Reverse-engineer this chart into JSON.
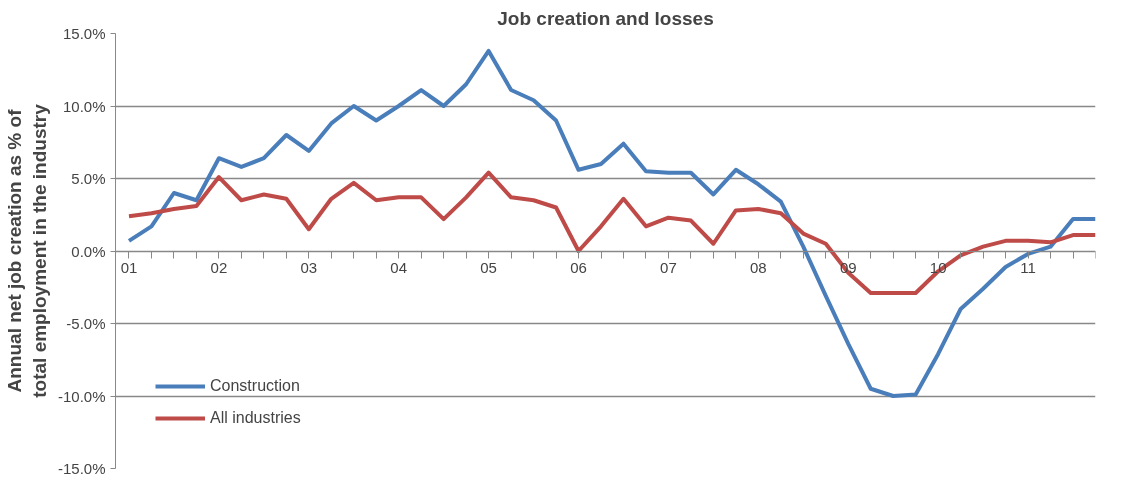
{
  "chart_data": {
    "type": "line",
    "title": "Job creation and losses",
    "ylabel": "Annual net job creation as % of\ntotal employment in the industry",
    "categories": [
      "01",
      null,
      null,
      null,
      "02",
      null,
      null,
      null,
      "03",
      null,
      null,
      null,
      "04",
      null,
      null,
      null,
      "05",
      null,
      null,
      null,
      "06",
      null,
      null,
      null,
      "07",
      null,
      null,
      null,
      "08",
      null,
      null,
      null,
      "09",
      null,
      null,
      null,
      "10",
      null,
      null,
      null,
      "11",
      null,
      null,
      null
    ],
    "series": [
      {
        "name": "Construction",
        "color": "#4a7ebb",
        "values": [
          0.7,
          1.7,
          4.0,
          3.5,
          6.4,
          5.8,
          6.4,
          8.0,
          6.9,
          8.8,
          10.0,
          9.0,
          10.0,
          11.1,
          10.0,
          11.5,
          13.8,
          11.1,
          10.4,
          9.0,
          5.6,
          6.0,
          7.4,
          5.5,
          5.4,
          5.4,
          3.9,
          5.6,
          4.6,
          3.4,
          0.3,
          -3.1,
          -6.4,
          -9.5,
          -10.0,
          -9.9,
          -7.1,
          -4.0,
          -2.6,
          -1.1,
          -0.2,
          0.3,
          2.2,
          2.2
        ]
      },
      {
        "name": "All industries",
        "color": "#be4b48",
        "values": [
          2.4,
          2.6,
          2.9,
          3.1,
          5.1,
          3.5,
          3.9,
          3.6,
          1.5,
          3.6,
          4.7,
          3.5,
          3.7,
          3.7,
          2.2,
          3.7,
          5.4,
          3.7,
          3.5,
          3.0,
          0.0,
          1.7,
          3.6,
          1.7,
          2.3,
          2.1,
          0.5,
          2.8,
          2.9,
          2.6,
          1.2,
          0.5,
          -1.5,
          -2.9,
          -2.9,
          -2.9,
          -1.4,
          -0.3,
          0.3,
          0.7,
          0.7,
          0.6,
          1.1,
          1.1
        ]
      }
    ],
    "ylim": [
      -15,
      15
    ],
    "yticks": [
      {
        "value": -15,
        "label": "-15.0%"
      },
      {
        "value": -10,
        "label": "-10.0%"
      },
      {
        "value": -5,
        "label": "-5.0%"
      },
      {
        "value": 0,
        "label": "0.0%"
      },
      {
        "value": 5,
        "label": "5.0%"
      },
      {
        "value": 10,
        "label": "10.0%"
      },
      {
        "value": 15,
        "label": "15.0%"
      }
    ],
    "grid": "y",
    "legend": "bottom left",
    "marker": "none",
    "line_style": "solid"
  }
}
